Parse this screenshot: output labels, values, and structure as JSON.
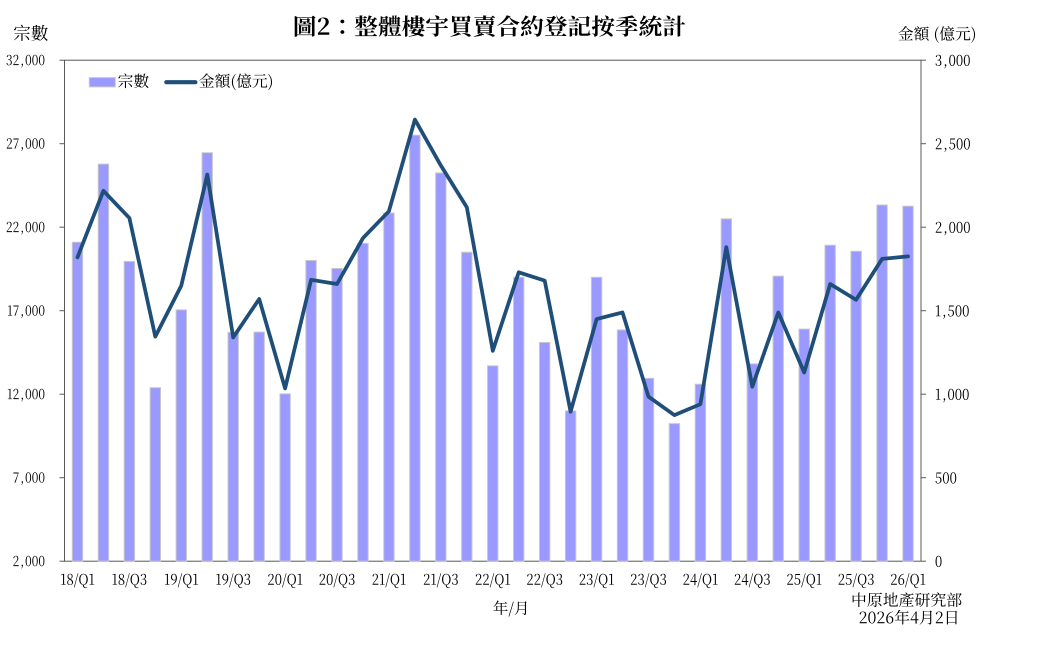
{
  "title": "圖2：整體樓宇買賣合約登記按季統計",
  "y_axis_left_title": "宗數",
  "y_axis_right_title": "金額 (億元)",
  "x_axis_title": "年/月",
  "legend": {
    "series1_label": "宗數",
    "series2_label": "金額(億元)"
  },
  "source_note": "中原地產研究部",
  "date_note": "2026年4月2日",
  "colors": {
    "bar_fill": "#9999FF",
    "bar_border": "#C9C9C9",
    "line": "#1F4E79",
    "axis": "#595959",
    "text": "#000000",
    "background": "#FFFFFF"
  },
  "chart_data": {
    "type": "combo",
    "title": "圖2：整體樓宇買賣合約登記按季統計",
    "categories": [
      "18/Q1",
      "18/Q2",
      "18/Q3",
      "18/Q4",
      "19/Q1",
      "19/Q2",
      "19/Q3",
      "19/Q4",
      "20/Q1",
      "20/Q2",
      "20/Q3",
      "20/Q4",
      "21/Q1",
      "21/Q2",
      "21/Q3",
      "21/Q4",
      "22/Q1",
      "22/Q2",
      "22/Q3",
      "22/Q4",
      "23/Q1",
      "23/Q2",
      "23/Q3",
      "23/Q4",
      "24/Q1",
      "24/Q2",
      "24/Q3",
      "24/Q4",
      "25/Q1",
      "25/Q2",
      "25/Q3",
      "25/Q4",
      "26/Q1"
    ],
    "x_tick_labels": [
      "18/Q1",
      "18/Q3",
      "19/Q1",
      "19/Q3",
      "20/Q1",
      "20/Q3",
      "21/Q1",
      "21/Q3",
      "22/Q1",
      "22/Q3",
      "23/Q1",
      "23/Q3",
      "24/Q1",
      "24/Q3",
      "25/Q1",
      "25/Q3",
      "26/Q1"
    ],
    "series": [
      {
        "name": "宗數",
        "type": "bar",
        "axis": "left",
        "values": [
          21100,
          25780,
          19950,
          12390,
          17050,
          26460,
          15700,
          15720,
          12020,
          20010,
          19530,
          21030,
          22850,
          27510,
          25250,
          20500,
          13700,
          19000,
          15100,
          11000,
          19000,
          15850,
          12950,
          10240,
          12600,
          22500,
          13820,
          19070,
          15900,
          20920,
          20560,
          23330,
          23260
        ]
      },
      {
        "name": "金額(億元)",
        "type": "line",
        "axis": "right",
        "values": [
          1820,
          2218,
          2055,
          1345,
          1650,
          2315,
          1340,
          1570,
          1035,
          1685,
          1660,
          1935,
          2095,
          2645,
          2370,
          2120,
          1260,
          1730,
          1680,
          895,
          1450,
          1490,
          985,
          875,
          940,
          1880,
          1045,
          1490,
          1130,
          1660,
          1565,
          1810,
          1825
        ]
      }
    ],
    "y_left": {
      "min": 2000,
      "max": 32000,
      "step": 5000,
      "ticks": [
        "2,000",
        "7,000",
        "12,000",
        "17,000",
        "22,000",
        "27,000",
        "32,000"
      ]
    },
    "y_right": {
      "min": 0,
      "max": 3000,
      "step": 500,
      "ticks": [
        "0",
        "500",
        "1,000",
        "1,500",
        "2,000",
        "2,500",
        "3,000"
      ]
    },
    "xlabel": "年/月",
    "ylabel_left": "宗數",
    "ylabel_right": "金額 (億元)",
    "legend_position": "top-left-inside"
  }
}
